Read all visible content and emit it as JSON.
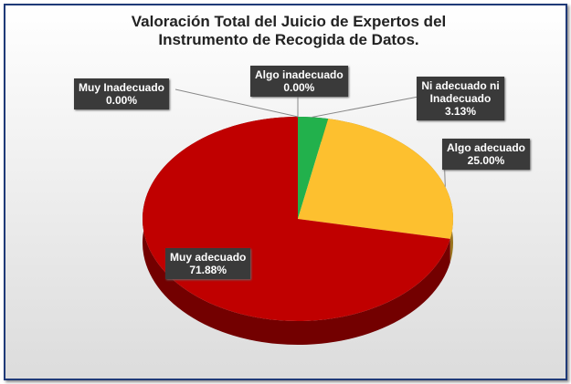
{
  "chart_data": {
    "type": "pie",
    "title": "Valoración Total del Juicio de Expertos del Instrumento de Recogida de Datos.",
    "categories": [
      "Muy Inadecuado",
      "Algo inadecuado",
      "Ni adecuado ni Inadecuado",
      "Algo adecuado",
      "Muy adecuado"
    ],
    "values": [
      0,
      0,
      3.13,
      25,
      71.88
    ],
    "value_labels": [
      "0.00%",
      "0.00%",
      "3.13%",
      "25.00%",
      "71.88%"
    ],
    "colors": [
      "#4472c4",
      "#ed7d31",
      "#22b14c",
      "#fdc02f",
      "#c00000"
    ]
  }
}
